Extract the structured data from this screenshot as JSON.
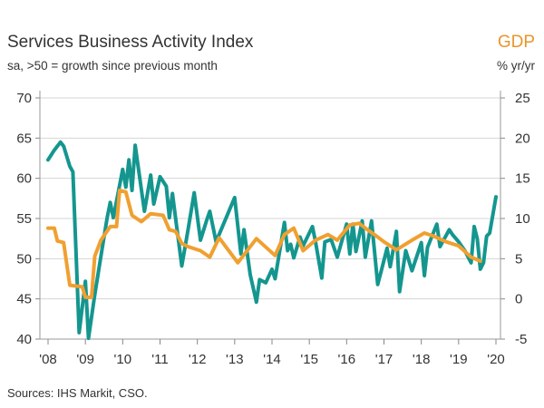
{
  "chart_data": {
    "type": "line",
    "title": "Services Business Activity Index",
    "subtitle": "sa, >50 = growth since previous month",
    "right_axis_title": "GDP",
    "right_axis_unit": "% yr/yr",
    "source": "Sources: IHS Markit, CSO.",
    "x_ticks": [
      "'08",
      "'09",
      "'10",
      "'11",
      "'12",
      "'13",
      "'14",
      "'15",
      "'16",
      "'17",
      "'18",
      "'19",
      "'20"
    ],
    "xlim": [
      "2008-01",
      "2020-01"
    ],
    "y_left": {
      "ticks": [
        40,
        45,
        50,
        55,
        60,
        65,
        70
      ],
      "ylim": [
        40,
        70
      ]
    },
    "y_right": {
      "ticks": [
        -5,
        0,
        5,
        10,
        15,
        20,
        25
      ],
      "ylim": [
        -5,
        25
      ]
    },
    "grid": true,
    "colors": {
      "services": "#14968f",
      "gdp": "#f0a030"
    },
    "series": [
      {
        "axis": "left",
        "color": "#14968f",
        "points": [
          [
            "2008-01",
            62.3
          ],
          [
            "2008-03",
            63.5
          ],
          [
            "2008-05",
            64.5
          ],
          [
            "2008-06",
            64.0
          ],
          [
            "2008-08",
            61.5
          ],
          [
            "2008-09",
            60.8
          ],
          [
            "2008-11",
            40.8
          ],
          [
            "2009-01",
            47.2
          ],
          [
            "2009-02",
            40.1
          ],
          [
            "2009-04",
            45.5
          ],
          [
            "2009-06",
            50.3
          ],
          [
            "2009-08",
            55.1
          ],
          [
            "2009-09",
            57.0
          ],
          [
            "2009-10",
            55.1
          ],
          [
            "2010-01",
            61.1
          ],
          [
            "2010-02",
            58.9
          ],
          [
            "2010-03",
            62.3
          ],
          [
            "2010-04",
            58.5
          ],
          [
            "2010-05",
            64.1
          ],
          [
            "2010-08",
            55.9
          ],
          [
            "2010-10",
            60.4
          ],
          [
            "2010-11",
            56.8
          ],
          [
            "2011-01",
            60.2
          ],
          [
            "2011-03",
            59.0
          ],
          [
            "2011-04",
            55.1
          ],
          [
            "2011-05",
            58.1
          ],
          [
            "2011-06",
            55.0
          ],
          [
            "2011-08",
            49.1
          ],
          [
            "2011-10",
            53.6
          ],
          [
            "2011-12",
            58.2
          ],
          [
            "2012-02",
            52.3
          ],
          [
            "2012-04",
            54.8
          ],
          [
            "2012-05",
            55.9
          ],
          [
            "2012-07",
            52.1
          ],
          [
            "2013-01",
            57.6
          ],
          [
            "2013-03",
            50.6
          ],
          [
            "2013-04",
            53.6
          ],
          [
            "2013-06",
            48.0
          ],
          [
            "2013-08",
            44.6
          ],
          [
            "2013-09",
            47.4
          ],
          [
            "2013-11",
            47.0
          ],
          [
            "2014-01",
            48.7
          ],
          [
            "2014-02",
            47.5
          ],
          [
            "2014-05",
            54.5
          ],
          [
            "2014-06",
            51.0
          ],
          [
            "2014-07",
            51.8
          ],
          [
            "2014-08",
            50.1
          ],
          [
            "2014-10",
            52.7
          ],
          [
            "2014-11",
            51.6
          ],
          [
            "2015-02",
            54.0
          ],
          [
            "2015-03",
            52.1
          ],
          [
            "2015-05",
            47.6
          ],
          [
            "2015-06",
            52.1
          ],
          [
            "2015-08",
            52.4
          ],
          [
            "2015-10",
            50.2
          ],
          [
            "2016-01",
            54.3
          ],
          [
            "2016-02",
            50.6
          ],
          [
            "2016-03",
            54.3
          ],
          [
            "2016-04",
            50.9
          ],
          [
            "2016-06",
            54.7
          ],
          [
            "2016-07",
            50.2
          ],
          [
            "2016-09",
            54.7
          ],
          [
            "2016-11",
            46.8
          ],
          [
            "2016-12",
            48.3
          ],
          [
            "2017-02",
            51.3
          ],
          [
            "2017-03",
            49.0
          ],
          [
            "2017-05",
            53.4
          ],
          [
            "2017-06",
            45.9
          ],
          [
            "2017-08",
            51.0
          ],
          [
            "2017-10",
            48.5
          ],
          [
            "2018-01",
            52.0
          ],
          [
            "2018-02",
            47.9
          ],
          [
            "2018-03",
            51.4
          ],
          [
            "2018-06",
            54.3
          ],
          [
            "2018-07",
            51.5
          ],
          [
            "2018-10",
            53.6
          ],
          [
            "2018-11",
            53.0
          ],
          [
            "2019-01",
            52.1
          ],
          [
            "2019-03",
            51.0
          ],
          [
            "2019-05",
            49.5
          ],
          [
            "2019-06",
            54.0
          ],
          [
            "2019-07",
            52.5
          ],
          [
            "2019-08",
            48.7
          ],
          [
            "2019-09",
            49.5
          ],
          [
            "2019-10",
            52.8
          ],
          [
            "2019-11",
            53.2
          ],
          [
            "2020-01",
            57.7
          ]
        ]
      },
      {
        "axis": "right",
        "color": "#f0a030",
        "points": [
          [
            "2008-01",
            8.8
          ],
          [
            "2008-03",
            8.8
          ],
          [
            "2008-04",
            7.2
          ],
          [
            "2008-06",
            7.0
          ],
          [
            "2008-08",
            1.7
          ],
          [
            "2008-12",
            1.5
          ],
          [
            "2009-01",
            0.2
          ],
          [
            "2009-03",
            0.2
          ],
          [
            "2009-04",
            5.3
          ],
          [
            "2009-06",
            7.3
          ],
          [
            "2009-09",
            9.0
          ],
          [
            "2009-11",
            9.0
          ],
          [
            "2009-12",
            13.5
          ],
          [
            "2010-02",
            13.3
          ],
          [
            "2010-04",
            10.4
          ],
          [
            "2010-07",
            9.6
          ],
          [
            "2010-10",
            10.6
          ],
          [
            "2011-02",
            10.4
          ],
          [
            "2011-04",
            8.6
          ],
          [
            "2011-06",
            8.4
          ],
          [
            "2011-08",
            6.9
          ],
          [
            "2011-10",
            6.5
          ],
          [
            "2012-02",
            6.0
          ],
          [
            "2012-05",
            5.2
          ],
          [
            "2012-08",
            7.6
          ],
          [
            "2013-02",
            4.5
          ],
          [
            "2013-08",
            7.5
          ],
          [
            "2014-02",
            5.4
          ],
          [
            "2014-05",
            8.0
          ],
          [
            "2014-08",
            8.8
          ],
          [
            "2014-11",
            6.0
          ],
          [
            "2015-03",
            7.3
          ],
          [
            "2015-07",
            8.0
          ],
          [
            "2015-10",
            7.3
          ],
          [
            "2016-02",
            9.2
          ],
          [
            "2016-05",
            9.4
          ],
          [
            "2016-07",
            8.8
          ],
          [
            "2016-11",
            7.7
          ],
          [
            "2017-01",
            7.1
          ],
          [
            "2017-05",
            6.1
          ],
          [
            "2017-10",
            7.3
          ],
          [
            "2018-02",
            8.2
          ],
          [
            "2018-05",
            7.8
          ],
          [
            "2018-09",
            7.1
          ],
          [
            "2019-01",
            6.6
          ],
          [
            "2019-05",
            5.2
          ],
          [
            "2019-08",
            4.7
          ]
        ]
      }
    ]
  }
}
